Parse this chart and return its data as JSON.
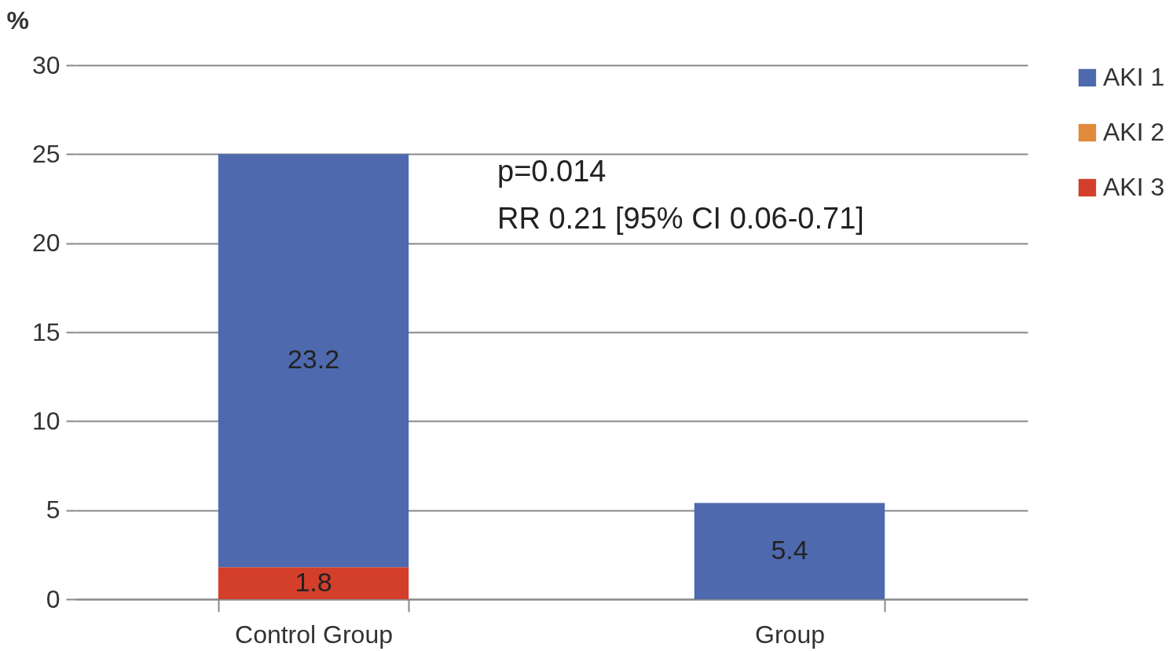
{
  "chart_data": {
    "type": "bar",
    "stacked": true,
    "ylabel": "%",
    "categories": [
      "Control Group",
      "Group"
    ],
    "series": [
      {
        "name": "AKI 3",
        "color": "#d33f2a",
        "values": [
          1.8,
          0
        ],
        "value_labels": [
          "1.8",
          null
        ]
      },
      {
        "name": "AKI 2",
        "color": "#e08a3c",
        "values": [
          0,
          0
        ],
        "value_labels": [
          null,
          null
        ]
      },
      {
        "name": "AKI 1",
        "color": "#4f69ae",
        "values": [
          23.2,
          5.4
        ],
        "value_labels": [
          "23.2",
          "5.4"
        ]
      }
    ],
    "ylim": [
      0,
      30
    ],
    "yticks": [
      0,
      5,
      10,
      15,
      20,
      25,
      30
    ],
    "grid": "y",
    "legend": "right",
    "annotations": [
      "p=0.014",
      "RR 0.21 [95% CI 0.06-0.71]"
    ]
  }
}
